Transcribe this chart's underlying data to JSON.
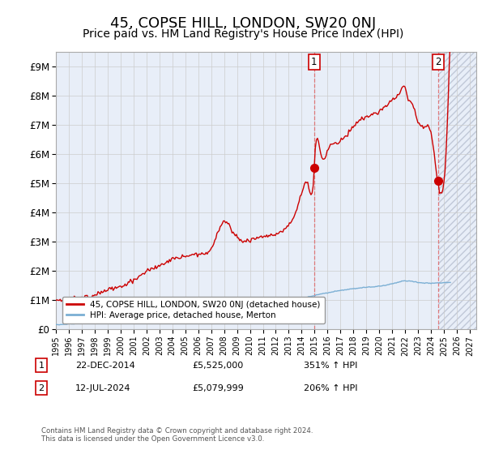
{
  "title": "45, COPSE HILL, LONDON, SW20 0NJ",
  "subtitle": "Price paid vs. HM Land Registry's House Price Index (HPI)",
  "xlim_start": 1995.0,
  "xlim_end": 2027.5,
  "ylim": [
    0,
    9500000
  ],
  "yticks": [
    0,
    1000000,
    2000000,
    3000000,
    4000000,
    5000000,
    6000000,
    7000000,
    8000000,
    9000000
  ],
  "ytick_labels": [
    "£0",
    "£1M",
    "£2M",
    "£3M",
    "£4M",
    "£5M",
    "£6M",
    "£7M",
    "£8M",
    "£9M"
  ],
  "xtick_years": [
    1995,
    1996,
    1997,
    1998,
    1999,
    2000,
    2001,
    2002,
    2003,
    2004,
    2005,
    2006,
    2007,
    2008,
    2009,
    2010,
    2011,
    2012,
    2013,
    2014,
    2015,
    2016,
    2017,
    2018,
    2019,
    2020,
    2021,
    2022,
    2023,
    2024,
    2025,
    2026,
    2027
  ],
  "hpi_color": "#7bafd4",
  "price_color": "#cc0000",
  "marker1_x": 2014.97,
  "marker1_y": 5525000,
  "marker1_label": "1",
  "marker1_date": "22-DEC-2014",
  "marker1_price": "£5,525,000",
  "marker1_hpi": "351% ↑ HPI",
  "marker2_x": 2024.53,
  "marker2_y": 5079999,
  "marker2_label": "2",
  "marker2_date": "12-JUL-2024",
  "marker2_price": "£5,079,999",
  "marker2_hpi": "206% ↑ HPI",
  "legend_label1": "45, COPSE HILL, LONDON, SW20 0NJ (detached house)",
  "legend_label2": "HPI: Average price, detached house, Merton",
  "footer": "Contains HM Land Registry data © Crown copyright and database right 2024.\nThis data is licensed under the Open Government Licence v3.0.",
  "bg_color": "#ffffff",
  "plot_bg_color": "#e8eef8",
  "grid_color": "#cccccc",
  "hatch_color": "#c0c8d8",
  "title_fontsize": 13,
  "subtitle_fontsize": 10,
  "axis_fontsize": 8.5
}
